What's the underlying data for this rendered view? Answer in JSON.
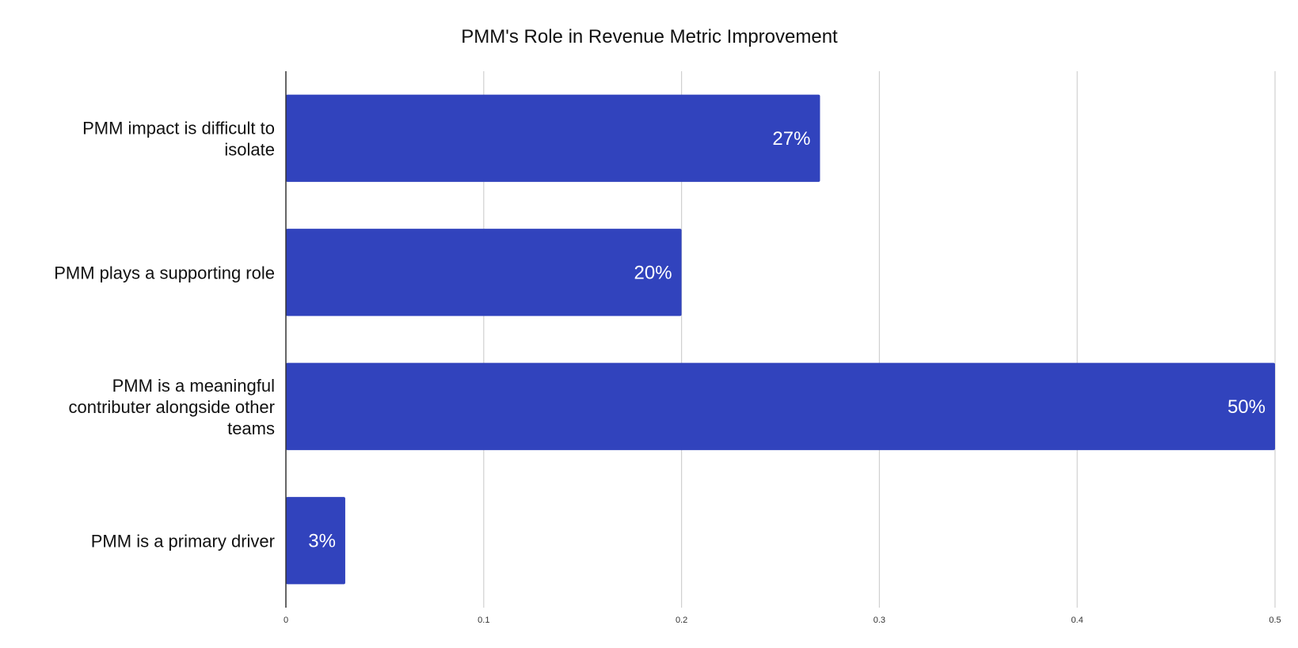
{
  "chart_data": {
    "type": "bar",
    "orientation": "horizontal",
    "title": "PMM's Role in Revenue Metric Improvement",
    "xlabel": "",
    "ylabel": "",
    "categories": [
      "PMM impact is difficult to isolate",
      "PMM plays a supporting role",
      "PMM is a meaningful contributer alongside other teams",
      "PMM is a primary driver"
    ],
    "category_lines": [
      [
        "PMM impact is difficult to",
        "isolate"
      ],
      [
        "PMM plays a supporting role"
      ],
      [
        "PMM is a meaningful",
        "contributer alongside other",
        "teams"
      ],
      [
        "PMM is a primary driver"
      ]
    ],
    "values": [
      0.27,
      0.2,
      0.5,
      0.03
    ],
    "data_labels": [
      "27%",
      "20%",
      "50%",
      "3%"
    ],
    "xlim": [
      0,
      0.5
    ],
    "x_ticks": [
      0,
      0.1,
      0.2,
      0.3,
      0.4,
      0.5
    ],
    "x_tick_labels": [
      "0",
      "0.1",
      "0.2",
      "0.3",
      "0.4",
      "0.5"
    ],
    "grid": true,
    "legend": "none",
    "colors": {
      "bar": "#3143BD",
      "grid": "#d0d0d0",
      "axis": "#333333"
    }
  }
}
